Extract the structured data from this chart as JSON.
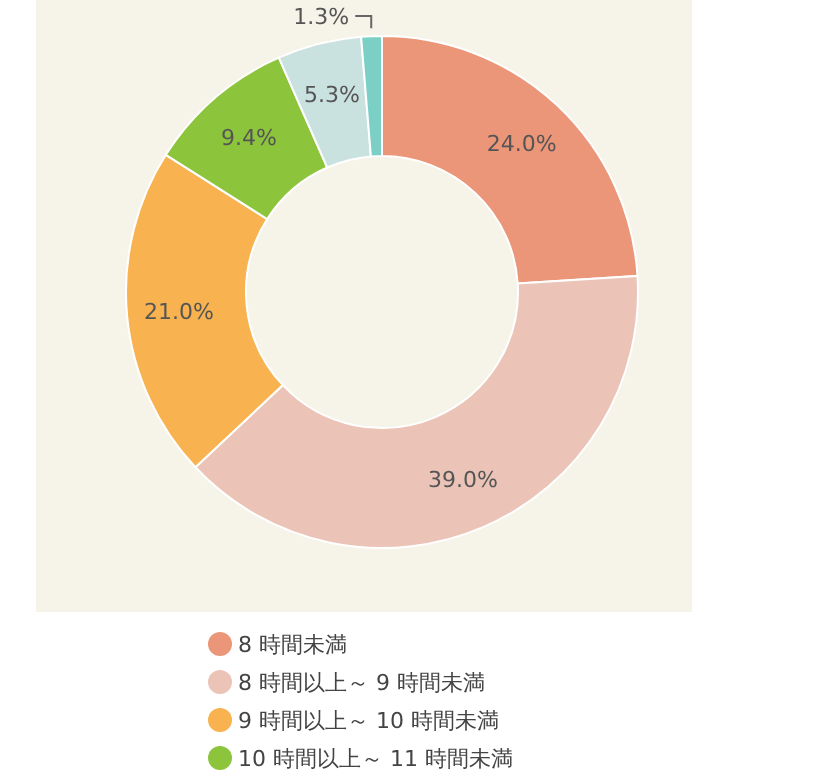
{
  "chart_data": {
    "type": "donut",
    "categories": [
      "8 時間未満",
      "8 時間以上～ 9 時間未満",
      "9 時間以上～ 10 時間未満",
      "10 時間以上～ 11 時間未満",
      null,
      null
    ],
    "values": [
      24.0,
      39.0,
      21.0,
      9.4,
      5.3,
      1.3
    ],
    "colors": [
      "#eb9679",
      "#ecc4b7",
      "#f8b24f",
      "#8cc43c",
      "#c9e2df",
      "#7ccfc4"
    ],
    "value_labels": [
      "24.0%",
      "39.0%",
      "21.0%",
      "9.4%",
      "5.3%",
      "1.3%"
    ],
    "legend": "bottom"
  }
}
